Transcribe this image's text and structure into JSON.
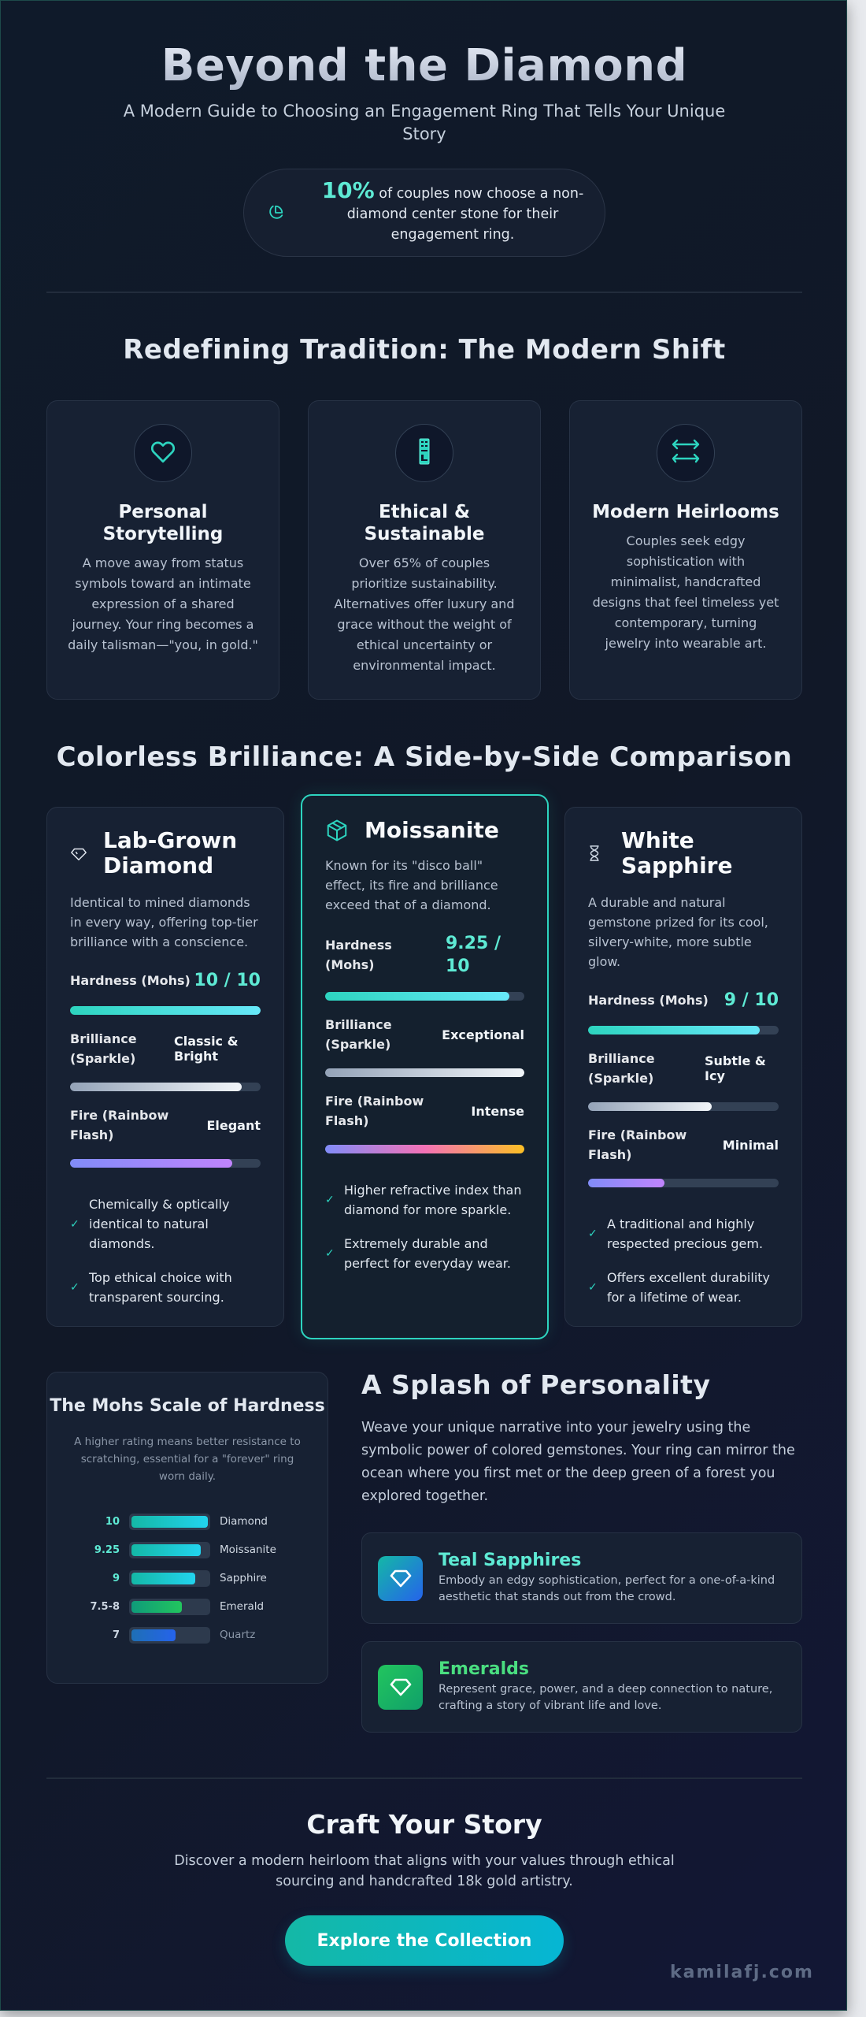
{
  "hero": {
    "title": "Beyond the Diamond",
    "subtitle": "A Modern Guide to Choosing an Engagement Ring That Tells Your Unique Story",
    "stat": {
      "icon": "pie-chart-icon",
      "value": "10%",
      "text": " of couples now choose a non-diamond center stone for their engagement ring."
    }
  },
  "tradition": {
    "title": "Redefining Tradition: The Modern Shift",
    "cards": [
      {
        "icon": "heart-icon",
        "title": "Personal Storytelling",
        "desc": "A move away from status symbols toward an intimate expression of a shared journey. Your ring becomes a daily talisman—\"you, in gold.\""
      },
      {
        "icon": "missing-glyph-icon",
        "title": "Ethical & Sustainable",
        "desc": "Over 65% of couples prioritize sustainability. Alternatives offer luxury and grace without the weight of ethical uncertainty or environmental impact."
      },
      {
        "icon": "arrows-horizontal-icon",
        "title": "Modern Heirlooms",
        "desc": "Couples seek edgy sophistication with minimalist, handcrafted designs that feel timeless yet contemporary, turning jewelry into wearable art."
      }
    ]
  },
  "comparison": {
    "title": "Colorless Brilliance: A Side-by-Side Comparison",
    "labels": {
      "hardness": "Hardness (Mohs)",
      "brilliance": "Brilliance (Sparkle)",
      "fire": "Fire (Rainbow Flash)"
    },
    "stones": [
      {
        "icon": "diamond-outline-icon",
        "name": "Lab-Grown Diamond",
        "desc": "Identical to mined diamonds in every way, offering top-tier brilliance with a conscience.",
        "hardness": "10 / 10",
        "hardness_pct": 100,
        "brilliance": "Classic & Bright",
        "brilliance_pct": 90,
        "fire": "Elegant",
        "fire_pct": 85,
        "checks": [
          "Chemically & optically identical to natural diamonds.",
          "Top ethical choice with transparent sourcing."
        ]
      },
      {
        "icon": "cube-icon",
        "name": "Moissanite",
        "desc": "Known for its \"disco ball\" effect, its fire and brilliance exceed that of a diamond.",
        "hardness": "9.25 / 10",
        "hardness_pct": 92.5,
        "brilliance": "Exceptional",
        "brilliance_pct": 100,
        "fire": "Intense",
        "fire_pct": 100,
        "featured": true,
        "checks": [
          "Higher refractive index than diamond for more sparkle.",
          "Extremely durable and perfect for everyday wear."
        ]
      },
      {
        "icon": "hourglass-icon",
        "name": "White Sapphire",
        "desc": "A durable and natural gemstone prized for its cool, silvery-white, more subtle glow.",
        "hardness": "9 / 10",
        "hardness_pct": 90,
        "brilliance": "Subtle & Icy",
        "brilliance_pct": 65,
        "fire": "Minimal",
        "fire_pct": 40,
        "checks": [
          "A traditional and highly respected precious gem.",
          "Offers excellent durability for a lifetime of wear."
        ]
      }
    ],
    "check_glyph": "✓"
  },
  "mohs": {
    "title": "The Mohs Scale of Hardness",
    "subtitle": "A higher rating means better resistance to scratching, essential for a \"forever\" ring worn daily.",
    "rows": [
      {
        "value": "10",
        "name": "Diamond",
        "pct": 100,
        "value_color": "#5eead4",
        "fill": "linear-gradient(90deg,#14b8a6,#22d3ee)"
      },
      {
        "value": "9.25",
        "name": "Moissanite",
        "pct": 91,
        "value_color": "#5eead4",
        "fill": "linear-gradient(90deg,#14b8a6,#22d3ee)"
      },
      {
        "value": "9",
        "name": "Sapphire",
        "pct": 83,
        "value_color": "#5eead4",
        "fill": "linear-gradient(90deg,#14b8a6,#22d3ee)"
      },
      {
        "value": "7.5-8",
        "name": "Emerald",
        "pct": 66,
        "value_color": "#cbd5e1",
        "fill": "linear-gradient(90deg,#0f9b7a,#22c55e)"
      },
      {
        "value": "7",
        "name": "Quartz",
        "pct": 58,
        "value_color": "#cbd5e1",
        "fill": "linear-gradient(90deg,#1e6fb5,#2563eb)"
      }
    ]
  },
  "chart_data": {
    "type": "bar",
    "title": "The Mohs Scale of Hardness",
    "categories": [
      "Diamond",
      "Moissanite",
      "Sapphire",
      "Emerald",
      "Quartz"
    ],
    "values": [
      10,
      9.25,
      9,
      7.75,
      7
    ],
    "value_labels": [
      "10",
      "9.25",
      "9",
      "7.5-8",
      "7"
    ],
    "xlabel": "",
    "ylabel": "Hardness (Mohs)",
    "orientation": "horizontal",
    "xlim": [
      0,
      10
    ]
  },
  "splash": {
    "title": "A Splash of Personality",
    "desc": "Weave your unique narrative into your jewelry using the symbolic power of colored gemstones. Your ring can mirror the ocean where you first met or the deep green of a forest you explored together.",
    "gems": [
      {
        "icon": "gem-icon",
        "name": "Teal Sapphires",
        "desc": "Embody an edgy sophistication, perfect for a one-of-a-kind aesthetic that stands out from the crowd.",
        "color": "#5eead4"
      },
      {
        "icon": "gem-icon",
        "name": "Emeralds",
        "desc": "Represent grace, power, and a deep connection to nature, crafting a story of vibrant life and love.",
        "color": "#4ade80"
      }
    ]
  },
  "cta": {
    "title": "Craft Your Story",
    "desc": "Discover a modern heirloom that aligns with your values through ethical sourcing and handcrafted 18k gold artistry.",
    "button": "Explore the Collection"
  },
  "watermark": "kamilafj.com"
}
